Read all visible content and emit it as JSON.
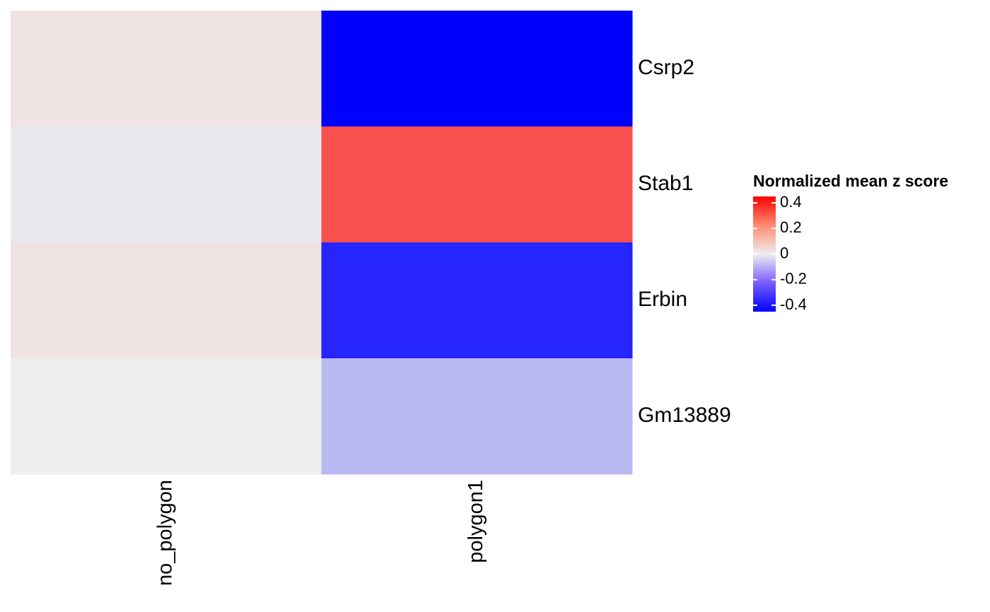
{
  "chart_data": {
    "type": "heatmap",
    "rows": [
      "Csrp2",
      "Stab1",
      "Erbin",
      "Gm13889"
    ],
    "columns": [
      "no_polygon",
      "polygon1"
    ],
    "values": [
      [
        0.02,
        -0.45
      ],
      [
        -0.01,
        0.3
      ],
      [
        0.02,
        -0.38
      ],
      [
        0.0,
        -0.1
      ]
    ],
    "legend": {
      "title": "Normalized mean z score",
      "ticks": [
        0.4,
        0.2,
        0,
        -0.2,
        -0.4
      ],
      "tick_labels": [
        "0.4",
        "0.2",
        "0",
        "-0.2",
        "-0.4"
      ],
      "range": [
        -0.45,
        0.45
      ],
      "placement": "right"
    },
    "colors": {
      "low": "#0000ff",
      "mid": "#eeeeee",
      "high": "#ff0000"
    }
  }
}
